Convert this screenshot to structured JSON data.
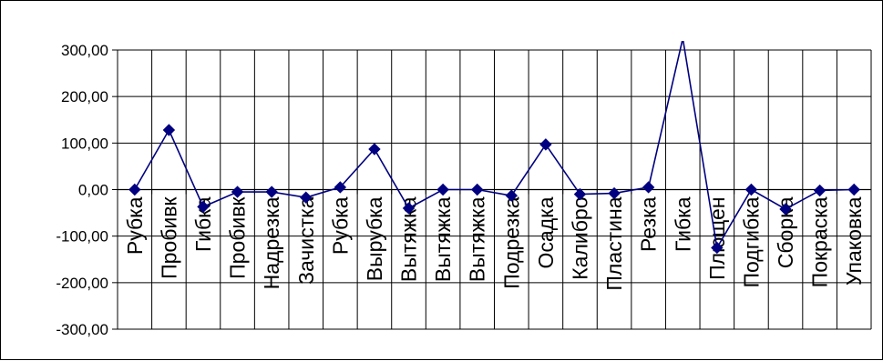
{
  "chart_data": {
    "type": "line",
    "title": "",
    "xlabel": "",
    "ylabel": "",
    "ylim": [
      -300,
      300
    ],
    "y_ticks": [
      {
        "value": 300,
        "label": "300,00"
      },
      {
        "value": 200,
        "label": "200,00"
      },
      {
        "value": 100,
        "label": "100,00"
      },
      {
        "value": 0,
        "label": "0,00"
      },
      {
        "value": -100,
        "label": "-100,00"
      },
      {
        "value": -200,
        "label": "-200,00"
      },
      {
        "value": -300,
        "label": "-300,00"
      }
    ],
    "grid": true,
    "legend": "none",
    "categories": [
      "Рубка",
      "Пробивк",
      "Гибка",
      "Пробивк",
      "Надрезка",
      "Зачистка",
      "Рубка",
      "Вырубка",
      "Вытяжка",
      "Вытяжка",
      "Вытяжка",
      "Подрезка",
      "Осадка",
      "Калибро",
      "Пластина",
      "Резка",
      "Гибка",
      "Плющен",
      "Подгибка",
      "Сборка",
      "Покраска",
      "Упаковка"
    ],
    "series": [
      {
        "values": [
          0,
          128,
          -37,
          -5,
          -5,
          -17,
          5,
          87,
          -40,
          0,
          0,
          -13,
          97,
          -10,
          -8,
          5,
          325,
          -125,
          0,
          -42,
          -2,
          0
        ],
        "color": "#000080",
        "marker": "diamond"
      }
    ]
  }
}
